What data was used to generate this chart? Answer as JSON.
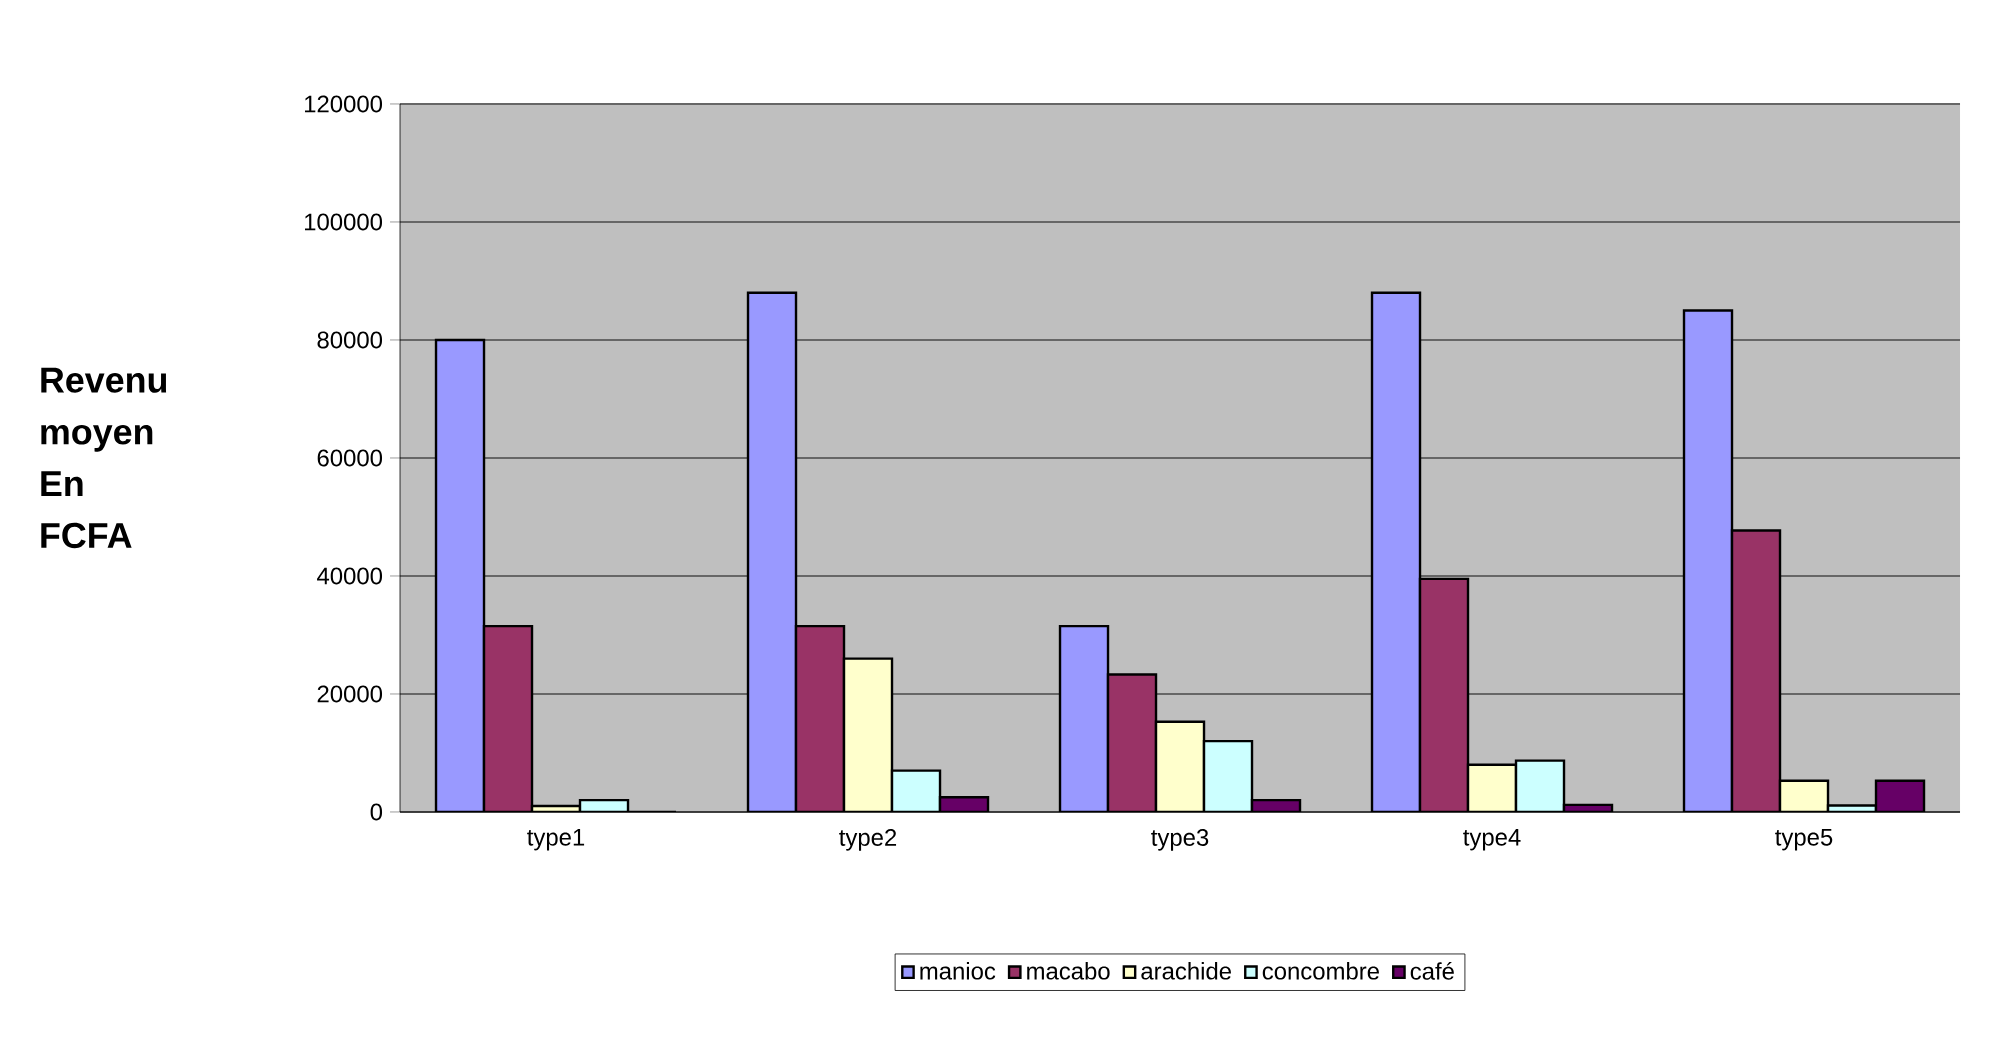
{
  "chart_data": {
    "type": "bar",
    "ylabel": "Revenu moyen En FCFA",
    "categories": [
      "type1",
      "type2",
      "type3",
      "type4",
      "type5"
    ],
    "series": [
      {
        "name": "manioc",
        "color": "#9999ff",
        "values": [
          80000,
          88000,
          31500,
          88000,
          85000
        ]
      },
      {
        "name": "macabo",
        "color": "#993366",
        "values": [
          31500,
          31500,
          23300,
          39500,
          47700
        ]
      },
      {
        "name": "arachide",
        "color": "#ffffcc",
        "values": [
          1000,
          26000,
          15300,
          8000,
          5300
        ]
      },
      {
        "name": "concombre",
        "color": "#ccffff",
        "values": [
          2000,
          7000,
          12000,
          8700,
          1100
        ]
      },
      {
        "name": "café",
        "color": "#660066",
        "values": [
          0,
          2500,
          2000,
          1200,
          5300
        ]
      }
    ],
    "ylim": [
      0,
      120000
    ],
    "yticks": [
      0,
      20000,
      40000,
      60000,
      80000,
      100000,
      120000
    ],
    "grid": "y",
    "legend": "bottom"
  }
}
